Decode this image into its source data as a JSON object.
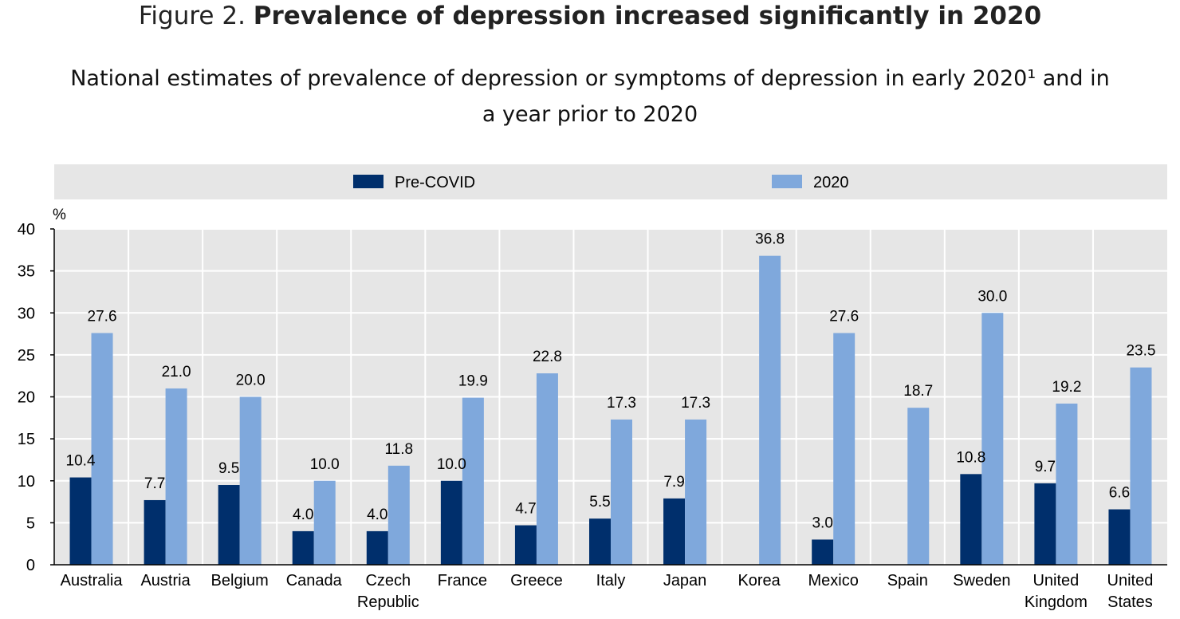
{
  "figure": {
    "label": "Figure 2.",
    "heading": "Prevalence of depression increased significantly in 2020",
    "subtitle_line1": "National estimates of prevalence of depression or symptoms of depression in early 2020¹ and in",
    "subtitle_line2": "a year prior to 2020"
  },
  "chart_data": {
    "type": "bar",
    "ylabel": "%",
    "ylim": [
      0,
      40
    ],
    "yticks": [
      0,
      5,
      10,
      15,
      20,
      25,
      30,
      35,
      40
    ],
    "grid": true,
    "legend_position": "top",
    "categories": [
      [
        "Australia"
      ],
      [
        "Austria"
      ],
      [
        "Belgium"
      ],
      [
        "Canada"
      ],
      [
        "Czech",
        "Republic"
      ],
      [
        "France"
      ],
      [
        "Greece"
      ],
      [
        "Italy"
      ],
      [
        "Japan"
      ],
      [
        "Korea"
      ],
      [
        "Mexico"
      ],
      [
        "Spain"
      ],
      [
        "Sweden"
      ],
      [
        "United",
        "Kingdom"
      ],
      [
        "United",
        "States"
      ]
    ],
    "series": [
      {
        "name": "Pre-COVID",
        "color": "#002f6c",
        "values": [
          10.4,
          7.7,
          9.5,
          4.0,
          4.0,
          10.0,
          4.7,
          5.5,
          7.9,
          null,
          3.0,
          null,
          10.8,
          9.7,
          6.6
        ],
        "labels": [
          "10.4",
          "7.7",
          "9.5",
          "4.0",
          "4.0",
          "10.0",
          "4.7",
          "5.5",
          "7.9",
          "",
          "3.0",
          "",
          "10.8",
          "9.7",
          "6.6"
        ]
      },
      {
        "name": "2020",
        "color": "#7fa8dc",
        "values": [
          27.6,
          21.0,
          20.0,
          10.0,
          11.8,
          19.9,
          22.8,
          17.3,
          17.3,
          36.8,
          27.6,
          18.7,
          30.0,
          19.2,
          23.5
        ],
        "labels": [
          "27.6",
          "21.0",
          "20.0",
          "10.0",
          "11.8",
          "19.9",
          "22.8",
          "17.3",
          "17.3",
          "36.8",
          "27.6",
          "18.7",
          "30.0",
          "19.2",
          "23.5"
        ]
      }
    ]
  }
}
